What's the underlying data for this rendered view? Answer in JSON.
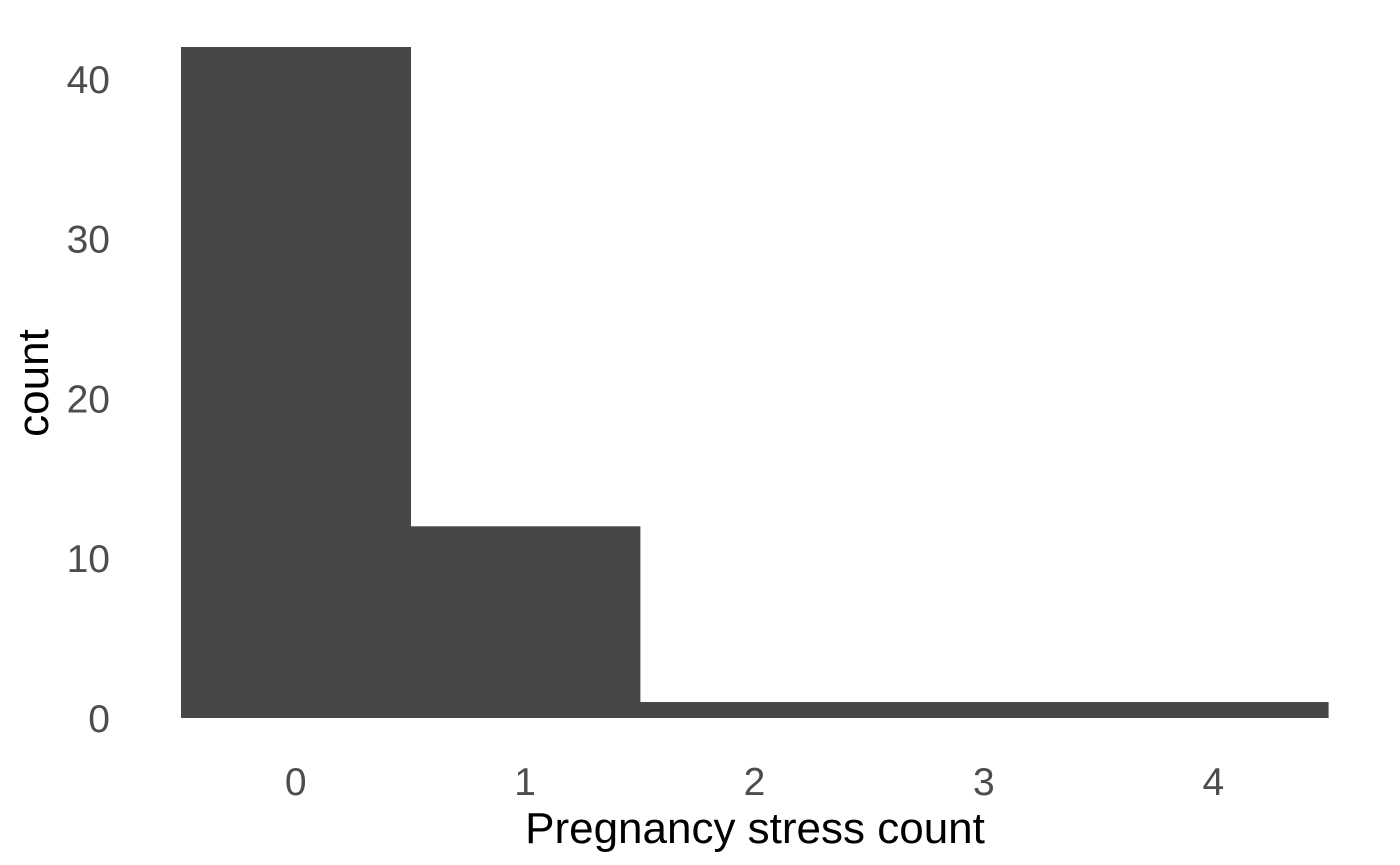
{
  "chart_data": {
    "type": "bar",
    "title": "",
    "xlabel": "Pregnancy stress count",
    "ylabel": "count",
    "categories": [
      "0",
      "1",
      "2",
      "3",
      "4"
    ],
    "x": [
      0,
      1,
      2,
      3,
      4
    ],
    "values": [
      42,
      12,
      1,
      1,
      1
    ],
    "xlim": [
      -0.5,
      4.5
    ],
    "ylim": [
      0,
      42
    ],
    "yticks": [
      0,
      10,
      20,
      30,
      40
    ],
    "xticks": [
      0,
      1,
      2,
      3,
      4
    ],
    "grid": false,
    "legend": "none",
    "bar_color": "#474747",
    "background": "#ffffff"
  }
}
